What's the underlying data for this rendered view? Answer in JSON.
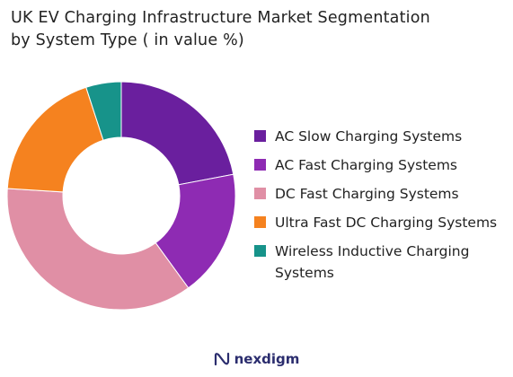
{
  "chart_data": {
    "type": "pie",
    "title": "UK EV Charging Infrastructure Market Segmentation",
    "subtitle": "by System Type ( in value %)",
    "categories": [
      "AC Slow Charging Systems",
      "AC Fast Charging Systems",
      "DC Fast Charging Systems",
      "Ultra Fast DC Charging Systems",
      "Wireless Inductive Charging Systems"
    ],
    "values": [
      22,
      18,
      36,
      19,
      5
    ],
    "colors": [
      "#6a1f9e",
      "#8e2bb3",
      "#e08fa5",
      "#f5821f",
      "#17938a"
    ],
    "legend_position": "right",
    "donut": true
  },
  "brand": {
    "name": "nexdigm"
  }
}
